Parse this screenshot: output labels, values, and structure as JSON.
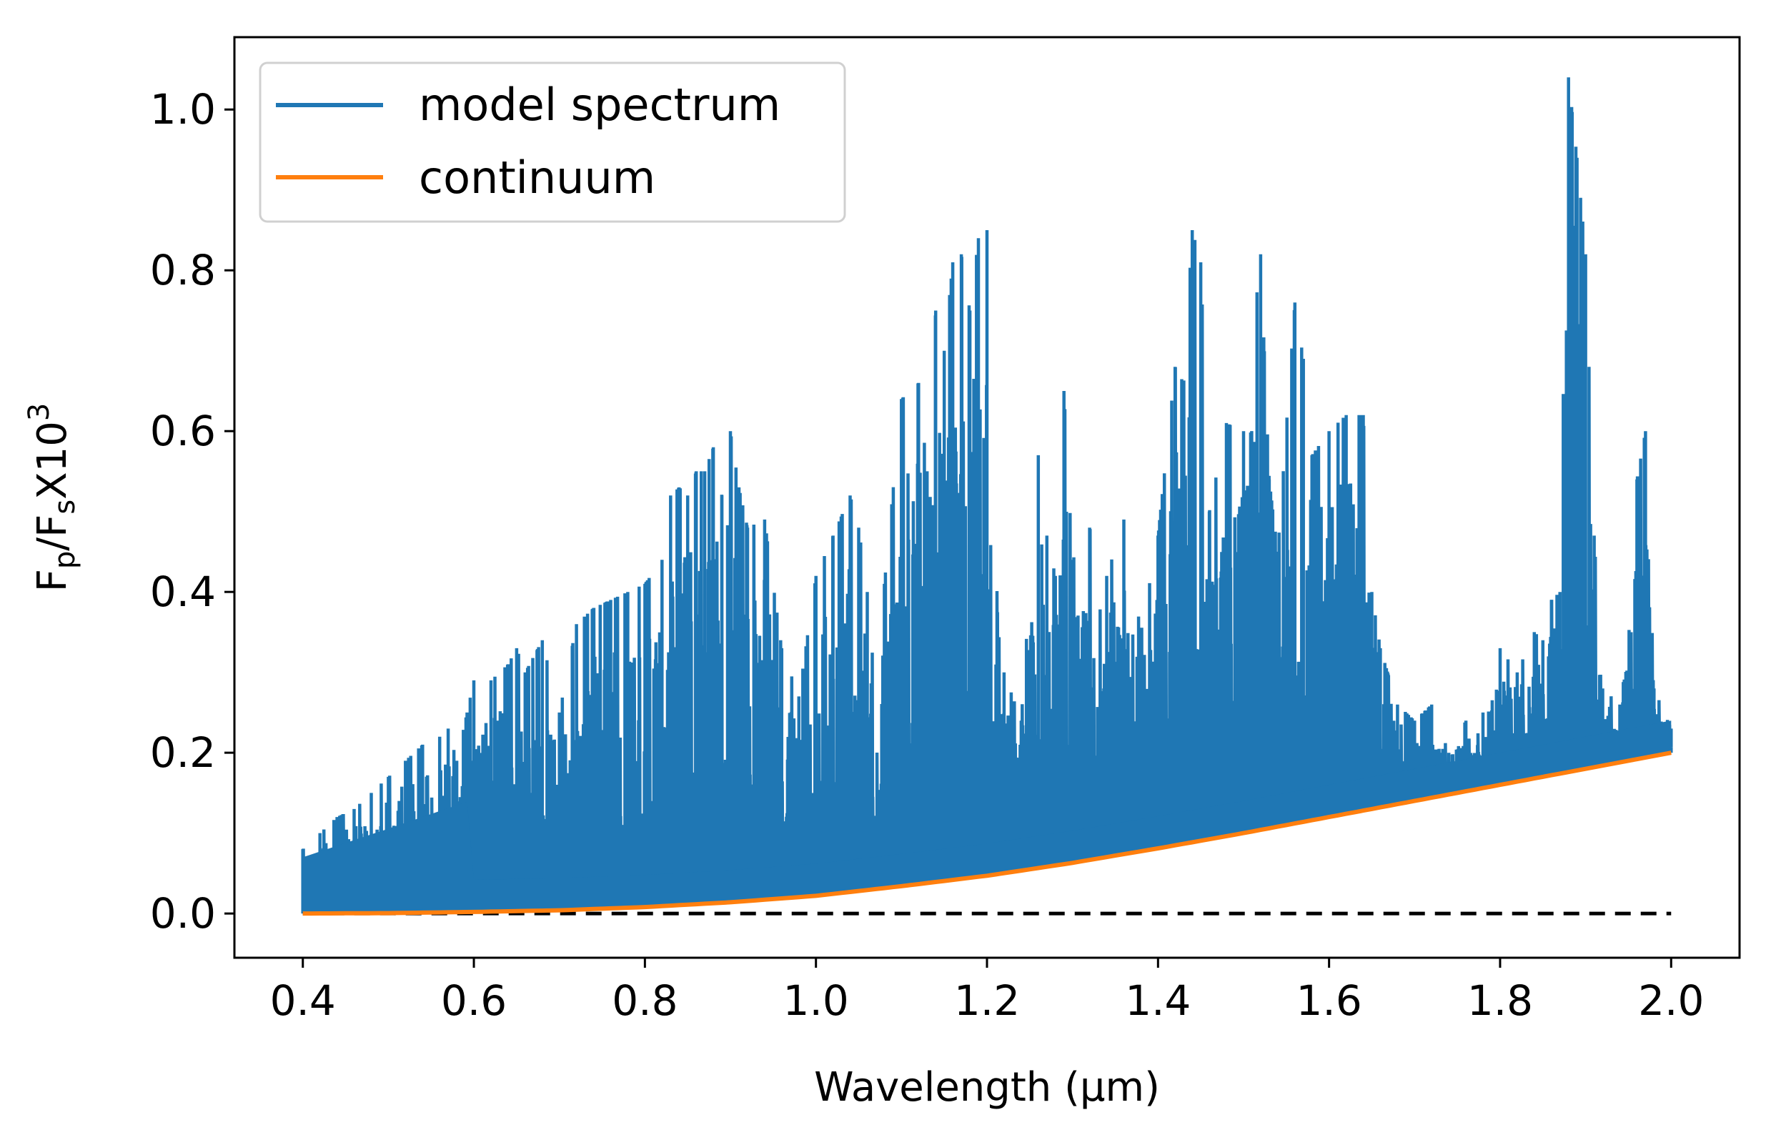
{
  "chart_data": {
    "type": "line",
    "title": "",
    "xlabel": "Wavelength (μm)",
    "ylabel": {
      "base": "F",
      "sub1": "p",
      "slash": "/F",
      "sub2": "s",
      "mult": "X10",
      "sup": "3"
    },
    "xlim": [
      0.32,
      2.08
    ],
    "ylim": [
      -0.055,
      1.09
    ],
    "xticks": [
      0.4,
      0.6,
      0.8,
      1.0,
      1.2,
      1.4,
      1.6,
      1.8,
      2.0
    ],
    "xtick_labels": [
      "0.4",
      "0.6",
      "0.8",
      "1.0",
      "1.2",
      "1.4",
      "1.6",
      "1.8",
      "2.0"
    ],
    "yticks": [
      0.0,
      0.2,
      0.4,
      0.6,
      0.8,
      1.0
    ],
    "ytick_labels": [
      "0.0",
      "0.2",
      "0.4",
      "0.6",
      "0.8",
      "1.0"
    ],
    "legend_position": "top-left",
    "colors": {
      "model": "#1f77b4",
      "continuum": "#ff7f0e",
      "zero": "#000000"
    },
    "series": [
      {
        "name": "model spectrum",
        "description": "dense emission-line model; sampled local maxima (upper envelope), lower envelope follows the continuum",
        "x": [
          0.4,
          0.42,
          0.44,
          0.46,
          0.48,
          0.5,
          0.52,
          0.54,
          0.56,
          0.57,
          0.58,
          0.6,
          0.62,
          0.64,
          0.65,
          0.66,
          0.68,
          0.7,
          0.72,
          0.74,
          0.76,
          0.78,
          0.8,
          0.82,
          0.83,
          0.84,
          0.85,
          0.86,
          0.87,
          0.88,
          0.89,
          0.9,
          0.91,
          0.92,
          0.94,
          0.96,
          0.98,
          1.0,
          1.02,
          1.04,
          1.05,
          1.06,
          1.08,
          1.1,
          1.12,
          1.13,
          1.14,
          1.15,
          1.16,
          1.17,
          1.18,
          1.19,
          1.2,
          1.22,
          1.24,
          1.26,
          1.27,
          1.28,
          1.29,
          1.3,
          1.32,
          1.34,
          1.36,
          1.38,
          1.4,
          1.42,
          1.43,
          1.44,
          1.45,
          1.46,
          1.48,
          1.5,
          1.52,
          1.53,
          1.54,
          1.56,
          1.57,
          1.58,
          1.6,
          1.62,
          1.64,
          1.65,
          1.66,
          1.68,
          1.7,
          1.72,
          1.74,
          1.76,
          1.78,
          1.8,
          1.82,
          1.84,
          1.85,
          1.86,
          1.87,
          1.88,
          1.89,
          1.9,
          1.91,
          1.92,
          1.94,
          1.96,
          1.97,
          1.98,
          2.0
        ],
        "y": [
          0.08,
          0.1,
          0.12,
          0.13,
          0.15,
          0.17,
          0.19,
          0.21,
          0.22,
          0.23,
          0.19,
          0.29,
          0.29,
          0.31,
          0.33,
          0.3,
          0.34,
          0.25,
          0.36,
          0.38,
          0.39,
          0.4,
          0.41,
          0.44,
          0.52,
          0.53,
          0.52,
          0.55,
          0.55,
          0.58,
          0.52,
          0.6,
          0.53,
          0.48,
          0.49,
          0.33,
          0.27,
          0.42,
          0.47,
          0.52,
          0.48,
          0.4,
          0.41,
          0.64,
          0.66,
          0.55,
          0.75,
          0.7,
          0.81,
          0.82,
          0.75,
          0.84,
          0.85,
          0.3,
          0.24,
          0.57,
          0.47,
          0.42,
          0.65,
          0.44,
          0.48,
          0.42,
          0.49,
          0.35,
          0.47,
          0.68,
          0.66,
          0.85,
          0.81,
          0.5,
          0.61,
          0.6,
          0.82,
          0.54,
          0.45,
          0.76,
          0.69,
          0.57,
          0.6,
          0.62,
          0.62,
          0.4,
          0.33,
          0.26,
          0.24,
          0.26,
          0.2,
          0.24,
          0.25,
          0.33,
          0.3,
          0.35,
          0.34,
          0.39,
          0.4,
          1.04,
          0.94,
          0.82,
          0.47,
          0.28,
          0.26,
          0.54,
          0.6,
          0.28,
          0.23
        ]
      },
      {
        "name": "continuum",
        "x": [
          0.4,
          0.5,
          0.6,
          0.7,
          0.8,
          0.9,
          1.0,
          1.1,
          1.2,
          1.3,
          1.4,
          1.5,
          1.6,
          1.7,
          1.8,
          1.9,
          2.0
        ],
        "y": [
          0.0,
          0.0005,
          0.002,
          0.004,
          0.008,
          0.014,
          0.022,
          0.034,
          0.047,
          0.063,
          0.081,
          0.1,
          0.12,
          0.14,
          0.16,
          0.18,
          0.2
        ]
      },
      {
        "name": "zero line",
        "x": [
          0.4,
          2.0
        ],
        "y": [
          0.0,
          0.0
        ]
      }
    ]
  }
}
